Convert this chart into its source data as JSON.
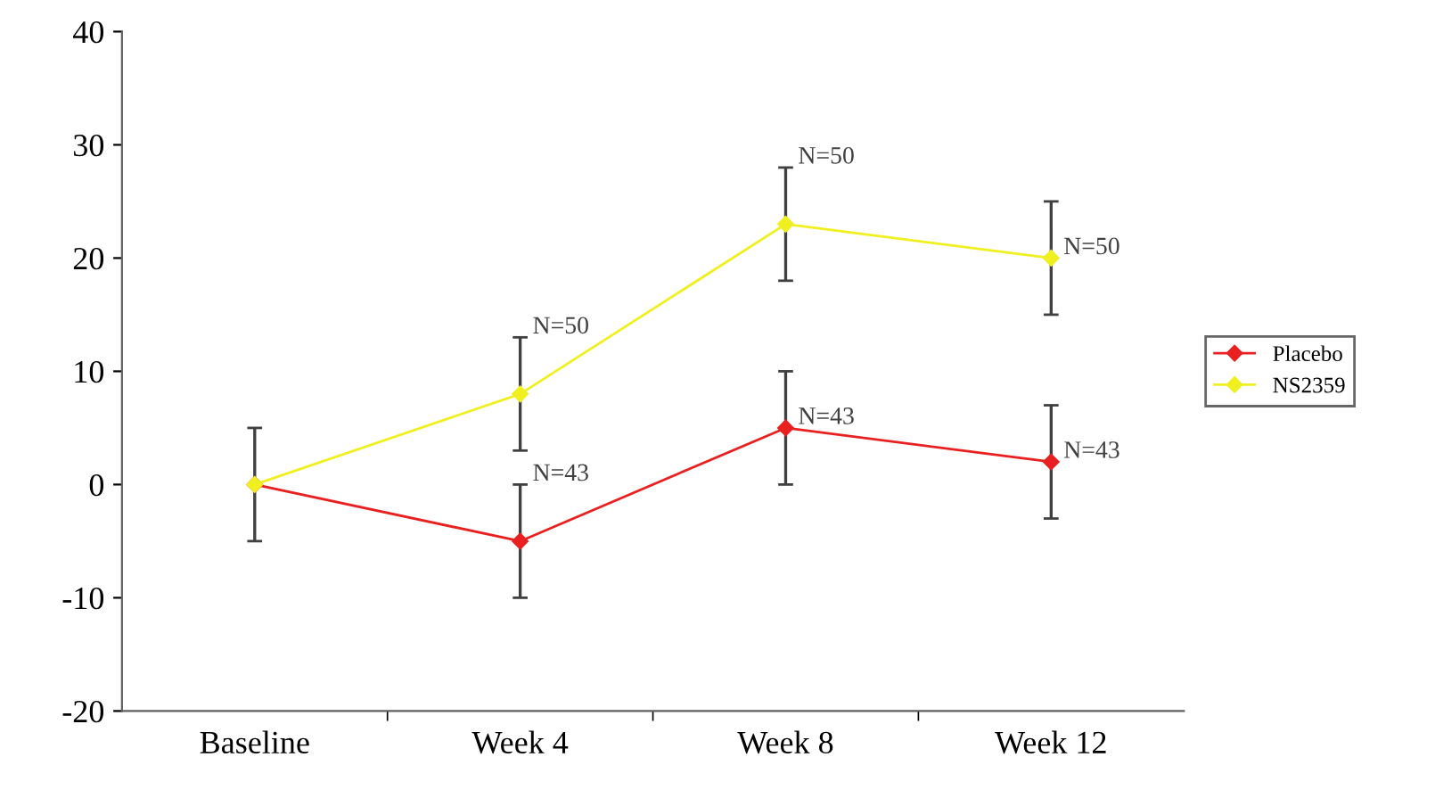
{
  "chart_data": {
    "type": "line",
    "categories": [
      "Baseline",
      "Week 4",
      "Week 8",
      "Week 12"
    ],
    "series": [
      {
        "name": "Placebo",
        "color": "#e82020",
        "values": [
          0,
          -5,
          5,
          2
        ],
        "errors": [
          null,
          5,
          5,
          5
        ]
      },
      {
        "name": "NS2359",
        "color": "#f0f020",
        "values": [
          0,
          8,
          23,
          20
        ],
        "errors": [
          5,
          5,
          5,
          5
        ]
      }
    ],
    "ylim": [
      -20,
      40
    ],
    "yticks": [
      -20,
      -10,
      0,
      10,
      20,
      30,
      40
    ],
    "grid": false,
    "legend": "right",
    "marker": "diamond",
    "line_style": "solid",
    "annotations": [
      {
        "text": "N=43",
        "x": "Week 4",
        "y": 0
      },
      {
        "text": "N=43",
        "x": "Week 8",
        "y": 5
      },
      {
        "text": "N=43",
        "x": "Week 12",
        "y": 2
      },
      {
        "text": "N=50",
        "x": "Week 4",
        "y": 13
      },
      {
        "text": "N=50",
        "x": "Week 8",
        "y": 28
      },
      {
        "text": "N=50",
        "x": "Week 12",
        "y": 20
      }
    ]
  }
}
